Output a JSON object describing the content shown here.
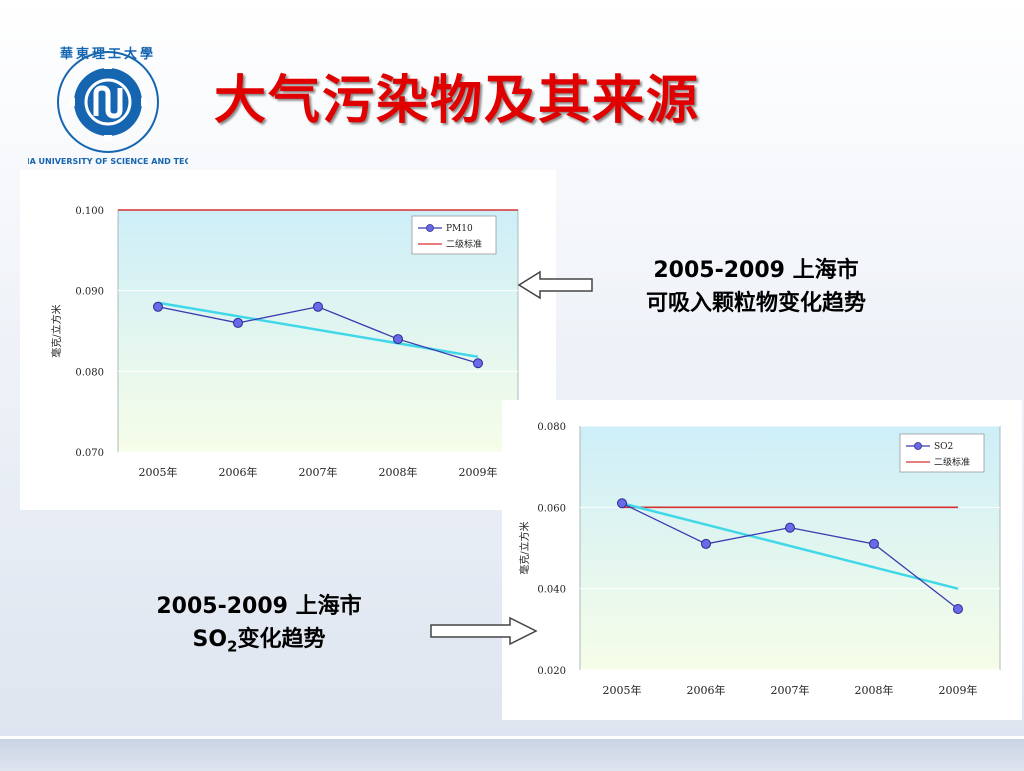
{
  "header": {
    "title": "大气污染物及其来源",
    "logo": {
      "icon": "university-logo-icon",
      "text": "華東理工大學 EAST CHINA UNIVERSITY OF SCIENCE AND TECHNOLOGY",
      "color": "#1565b0"
    }
  },
  "captions": {
    "pm": {
      "line1_num": "2005-2009",
      "line1_cn": "上海市",
      "line2_cn": "可吸入颗粒物变化趋势"
    },
    "so2": {
      "line1_num": "2005-2009",
      "line1_cn": "上海市",
      "line2_so": "SO",
      "line2_sub": "2",
      "line2_cn": "变化趋势"
    }
  },
  "colors": {
    "title": "#e00000",
    "series": "#3a3ab0",
    "trend": "#40d8e8",
    "standard": "#d83030"
  },
  "chart_data": [
    {
      "type": "line",
      "categories": [
        "2005年",
        "2006年",
        "2007年",
        "2008年",
        "2009年"
      ],
      "ylim": [
        0.07,
        0.1
      ],
      "yticks": [
        "0.070",
        "0.080",
        "0.090",
        "0.100"
      ],
      "ytick_values": [
        0.07,
        0.08,
        0.09,
        0.1
      ],
      "ylabel": "毫克/立方米",
      "series": [
        {
          "name": "PM10",
          "values": [
            0.088,
            0.086,
            0.088,
            0.084,
            0.081
          ]
        },
        {
          "name": "二级标准",
          "values": [
            0.1,
            0.1,
            0.1,
            0.1,
            0.1
          ]
        }
      ],
      "trend": [
        0.0885,
        0.0818
      ],
      "legend": {
        "position": "top-right",
        "entries": [
          "PM10",
          "二级标准"
        ]
      }
    },
    {
      "type": "line",
      "categories": [
        "2005年",
        "2006年",
        "2007年",
        "2008年",
        "2009年"
      ],
      "ylim": [
        0.02,
        0.08
      ],
      "yticks": [
        "0.020",
        "0.040",
        "0.060",
        "0.080"
      ],
      "ytick_values": [
        0.02,
        0.04,
        0.06,
        0.08
      ],
      "ylabel": "毫克/立方米",
      "series": [
        {
          "name": "SO2",
          "values": [
            0.061,
            0.051,
            0.055,
            0.051,
            0.035
          ]
        },
        {
          "name": "二级标准",
          "values": [
            0.06,
            0.06,
            0.06,
            0.06,
            0.06
          ]
        }
      ],
      "trend": [
        0.061,
        0.04
      ],
      "legend": {
        "position": "top-right",
        "entries": [
          "SO2",
          "二级标准"
        ]
      }
    }
  ]
}
